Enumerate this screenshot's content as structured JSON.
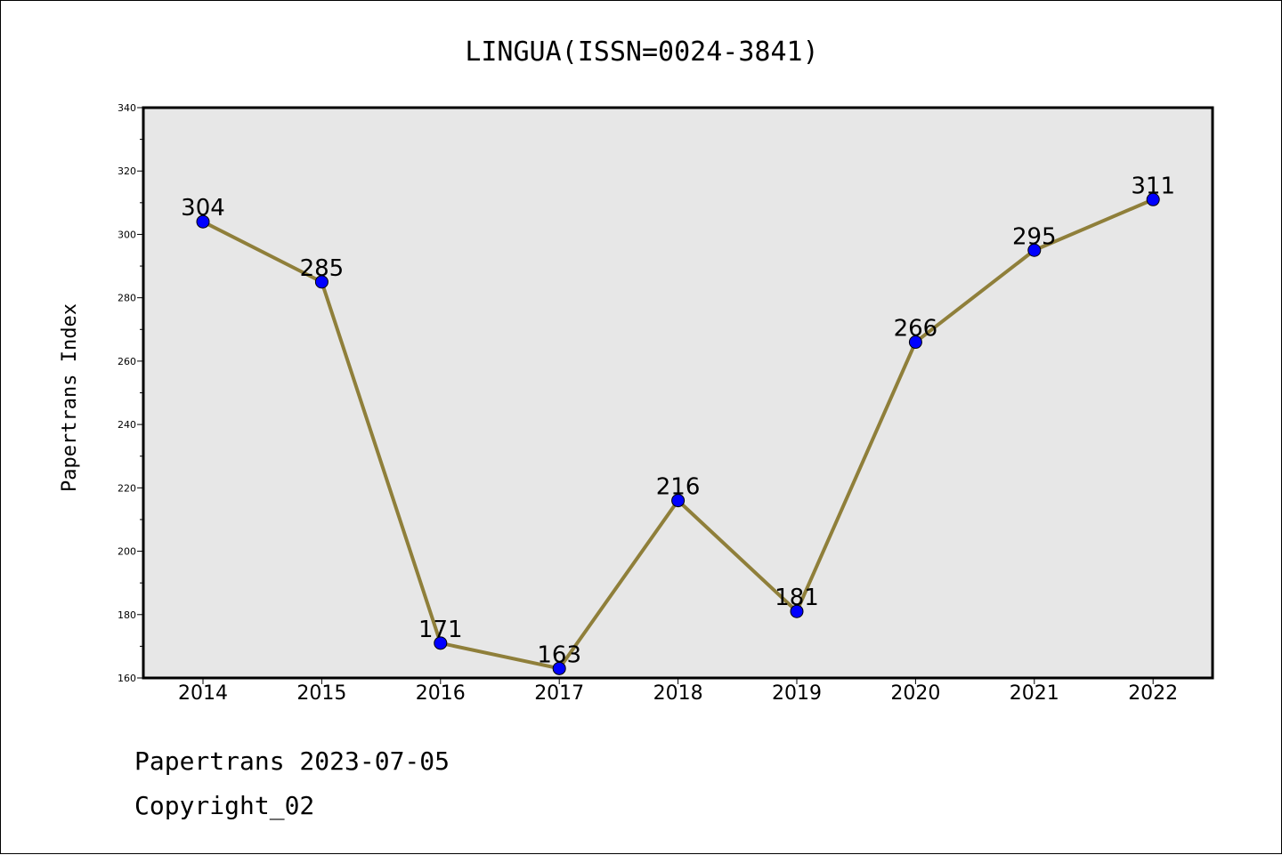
{
  "chart_data": {
    "type": "line",
    "title": "LINGUA(ISSN=0024-3841)",
    "xlabel": "",
    "ylabel": "Papertrans Index",
    "categories": [
      "2014",
      "2015",
      "2016",
      "2017",
      "2018",
      "2019",
      "2020",
      "2021",
      "2022"
    ],
    "values": [
      304,
      285,
      171,
      163,
      216,
      181,
      266,
      295,
      311
    ],
    "ylim": [
      160,
      340
    ],
    "yticks": [
      160,
      180,
      200,
      220,
      240,
      260,
      280,
      300,
      320,
      340
    ],
    "grid": false,
    "line_color": "#8f7f3a",
    "marker_color": "#0000ff",
    "plot_background": "#e7e7e7"
  },
  "footer": {
    "line1": "Papertrans 2023-07-05",
    "line2": "Copyright_02"
  }
}
